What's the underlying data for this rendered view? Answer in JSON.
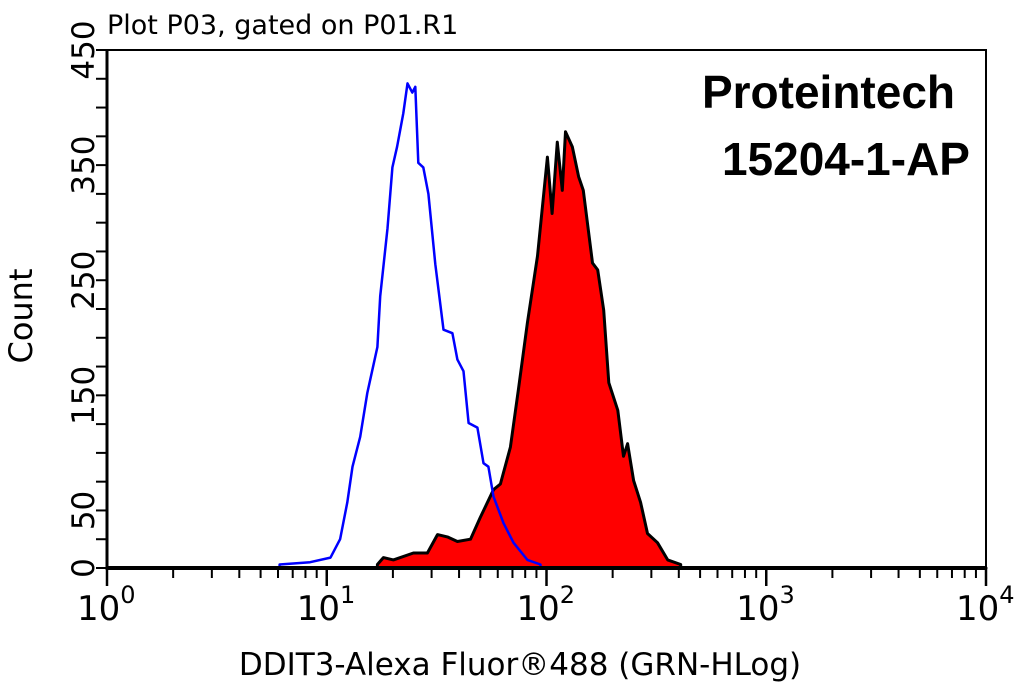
{
  "chart_data": {
    "type": "area",
    "title": "Plot P03, gated on P01.R1",
    "xlabel": "DDIT3-Alexa Fluor®488 (GRN-HLog)",
    "ylabel": "Count",
    "x_scale": "log",
    "xlim": [
      1,
      10000
    ],
    "ylim": [
      0,
      450
    ],
    "x_ticks": [
      {
        "base": "10",
        "exp": "0",
        "value": 1
      },
      {
        "base": "10",
        "exp": "1",
        "value": 10
      },
      {
        "base": "10",
        "exp": "2",
        "value": 100
      },
      {
        "base": "10",
        "exp": "3",
        "value": 1000
      },
      {
        "base": "10",
        "exp": "4",
        "value": 10000
      }
    ],
    "y_tick_labels": [
      "0",
      "50",
      "150",
      "250",
      "350",
      "450"
    ],
    "y_tick_step": 25,
    "grid": false,
    "annotation": {
      "line1": "Proteintech",
      "line2": "15204-1-AP"
    },
    "series": [
      {
        "style": "outline",
        "color": "#0000ff",
        "x": [
          6.1,
          8.4,
          10.4,
          11.5,
          12.4,
          13.1,
          14.2,
          15.3,
          17.0,
          17.5,
          18.9,
          19.9,
          20.9,
          22.3,
          23.3,
          24.5,
          25.3,
          26.1,
          27.5,
          29.0,
          31.2,
          34.0,
          37.3,
          39.3,
          41.9,
          44.2,
          48.5,
          51.7,
          54.4,
          57.4,
          63.7,
          70.8,
          81.9,
          93.9
        ],
        "y": [
          3,
          5,
          9,
          25,
          57,
          88,
          114,
          152,
          192,
          236,
          295,
          348,
          366,
          395,
          421,
          413,
          418,
          352,
          348,
          325,
          264,
          207,
          204,
          181,
          171,
          126,
          122,
          91,
          88,
          62,
          39,
          22,
          7,
          3
        ]
      },
      {
        "style": "filled",
        "color": "#ff0000",
        "outline": "#000000",
        "x": [
          17.0,
          18.1,
          20.1,
          24.8,
          28.7,
          31.9,
          35.4,
          39.3,
          45.1,
          50.0,
          57.4,
          61.7,
          68.5,
          74.5,
          81.9,
          91.0,
          101,
          106,
          112,
          118,
          122,
          131,
          140,
          147,
          162,
          171,
          182,
          192,
          211,
          224,
          234,
          249,
          268,
          288,
          320,
          356,
          408
        ],
        "y": [
          3,
          9,
          7,
          13,
          13,
          29,
          27,
          23,
          25,
          44,
          68,
          73,
          105,
          155,
          213,
          271,
          357,
          308,
          370,
          328,
          379,
          366,
          340,
          328,
          265,
          259,
          224,
          161,
          137,
          97,
          108,
          76,
          57,
          30,
          22,
          7,
          3
        ]
      }
    ]
  }
}
